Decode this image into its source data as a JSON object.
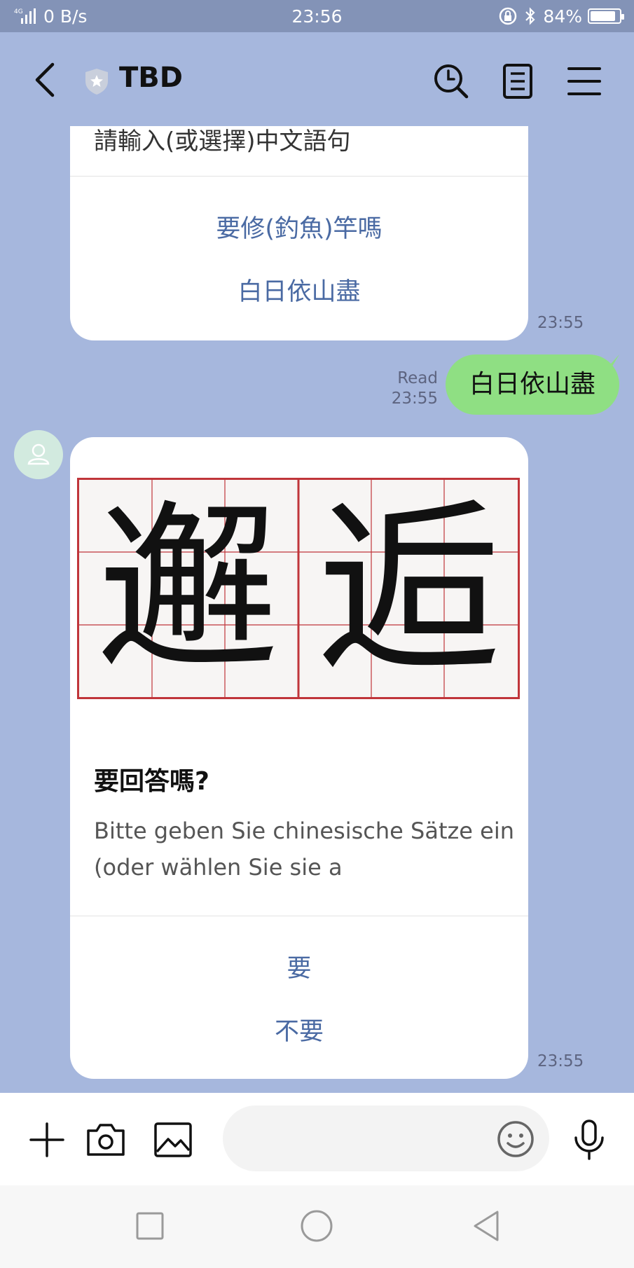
{
  "status_bar": {
    "network": "4G",
    "speed": "0 B/s",
    "time": "23:56",
    "battery": "84%"
  },
  "header": {
    "title": "TBD",
    "icons": [
      "back-icon",
      "shield-icon",
      "search-clock-icon",
      "notes-icon",
      "menu-icon"
    ]
  },
  "messages": {
    "prev_card": {
      "cut_text": "請輸入(或選擇)中文語句",
      "actions": [
        "要修(釣魚)竿嗎",
        "白日依山盡"
      ],
      "time": "23:55"
    },
    "sent": {
      "text": "白日依山盡",
      "read": "Read",
      "time": "23:55"
    },
    "bot_card": {
      "image_chars": [
        "邂",
        "逅"
      ],
      "title": "要回答嗎?",
      "description": "Bitte geben Sie chinesische Sätze ein (oder wählen Sie sie a",
      "actions": [
        "要",
        "不要"
      ],
      "time": "23:55"
    }
  },
  "input_bar": {
    "placeholder": "",
    "icons": [
      "plus-icon",
      "camera-icon",
      "image-icon",
      "emoji-icon",
      "mic-icon"
    ]
  },
  "colors": {
    "background": "#a6b7dd",
    "status_bar": "#8393b7",
    "sent_bubble": "#8fdf83",
    "action_text": "#4a6aa3",
    "grid_red": "#c0353a"
  }
}
